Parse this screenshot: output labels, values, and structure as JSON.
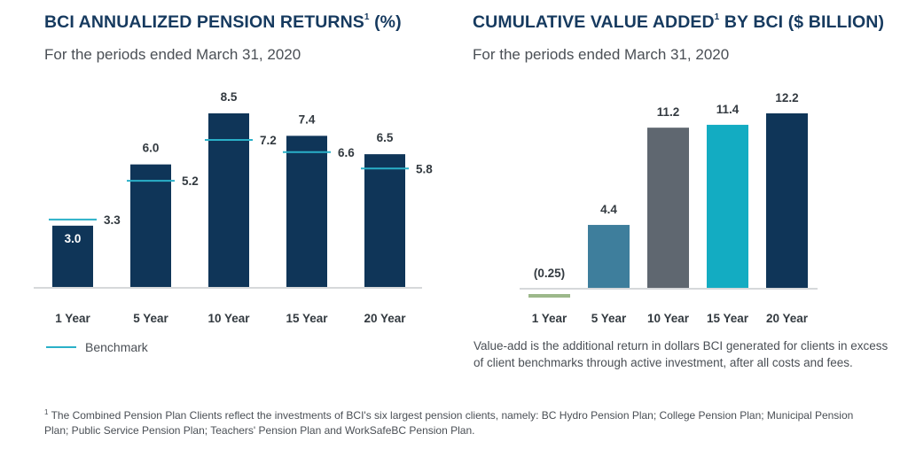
{
  "chart_data": [
    {
      "type": "bar",
      "title": "BCI ANNUALIZED PENSION RETURNS",
      "title_sup": "1",
      "title_suffix": " (%)",
      "subtitle": "For the periods ended March 31, 2020",
      "categories": [
        "1 Year",
        "5 Year",
        "10 Year",
        "15 Year",
        "20 Year"
      ],
      "values": [
        3.0,
        6.0,
        8.5,
        7.4,
        6.5
      ],
      "value_labels": [
        "3.0",
        "6.0",
        "8.5",
        "7.4",
        "6.5"
      ],
      "benchmark": {
        "name": "Benchmark",
        "values": [
          3.3,
          5.2,
          7.2,
          6.6,
          5.8
        ],
        "labels": [
          "3.3",
          "5.2",
          "7.2",
          "6.6",
          "5.8"
        ],
        "color": "#2ab0c8"
      },
      "bar_color": "#0f3558",
      "ylim": [
        0,
        9.2
      ],
      "grid": false,
      "legend": "bottom-left"
    },
    {
      "type": "bar",
      "title": "CUMULATIVE VALUE ADDED",
      "title_sup": "1",
      "title_suffix": " BY BCI ($ BILLION)",
      "subtitle": "For the periods ended March 31, 2020",
      "categories": [
        "1 Year",
        "5 Year",
        "10 Year",
        "15 Year",
        "20 Year"
      ],
      "values": [
        -0.25,
        4.4,
        11.2,
        11.4,
        12.2
      ],
      "value_labels": [
        "(0.25)",
        "4.4",
        "11.2",
        "11.4",
        "12.2"
      ],
      "colors": [
        "#9cb88a",
        "#3e7e9c",
        "#5f6770",
        "#13acc2",
        "#0f3558"
      ],
      "ylim": [
        -0.5,
        14
      ],
      "grid": false
    }
  ],
  "note": "Value-add is the additional return in dollars BCI generated for clients in excess of client benchmarks through active investment, after all costs and fees.",
  "footnote_mark": "1",
  "footnote": " The Combined Pension Plan Clients reflect the investments of BCI's six largest pension clients, namely: BC Hydro Pension Plan; College Pension Plan; Municipal Pension Plan; Public Service Pension Plan; Teachers' Pension Plan and WorkSafeBC Pension Plan.",
  "colors": {
    "axis": "#c8cbce",
    "label": "#333a40",
    "title": "#163a5f"
  }
}
